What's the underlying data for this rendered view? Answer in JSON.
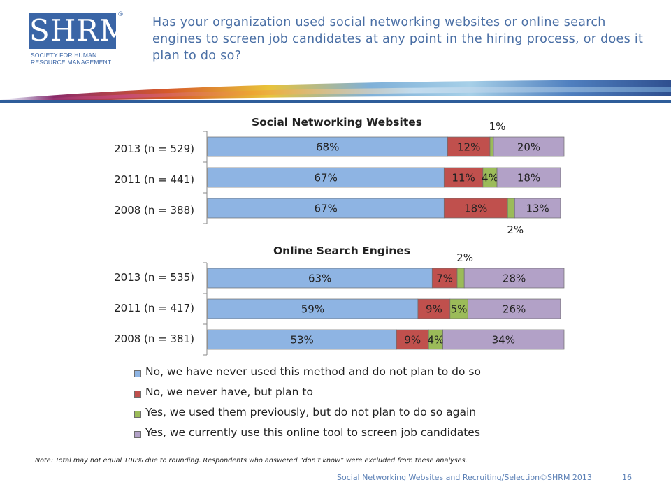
{
  "header": {
    "logo_text": "SHRM",
    "logo_registered": "®",
    "logo_tagline_1": "SOCIETY FOR HUMAN",
    "logo_tagline_2": "RESOURCE MANAGEMENT",
    "question": "Has your organization used social networking websites or online search engines to screen job candidates at any point in the hiring process, or does it plan to do so?"
  },
  "colors": {
    "no_never": "#8eb4e3",
    "no_plan": "#c0504d",
    "yes_previously": "#9bbb59",
    "yes_currently": "#b2a1c7",
    "question_text": "#4a6fa5",
    "logo": "#3a65a6"
  },
  "chart_data": [
    {
      "type": "bar",
      "orientation": "horizontal-stacked",
      "title": "Social Networking Websites",
      "categories": [
        "2013 (n = 529)",
        "2011 (n = 441)",
        "2008 (n = 388)"
      ],
      "series": [
        {
          "name": "No, we have never used this method and do not plan to do so",
          "values": [
            68,
            67,
            67
          ],
          "labels": [
            "68%",
            "67%",
            "67%"
          ]
        },
        {
          "name": "No, we never have, but plan to",
          "values": [
            12,
            11,
            18
          ],
          "labels": [
            "12%",
            "11%",
            "18%"
          ]
        },
        {
          "name": "Yes, we used them previously, but do not plan to do so again",
          "values": [
            1,
            4,
            2
          ],
          "labels": [
            "1%",
            "4%",
            "2%"
          ]
        },
        {
          "name": "Yes, we currently use this online tool to screen job candidates",
          "values": [
            20,
            18,
            13
          ],
          "labels": [
            "20%",
            "18%",
            "13%"
          ]
        }
      ],
      "xlim": [
        0,
        101
      ]
    },
    {
      "type": "bar",
      "orientation": "horizontal-stacked",
      "title": "Online Search Engines",
      "categories": [
        "2013 (n = 535)",
        "2011 (n = 417)",
        "2008 (n = 381)"
      ],
      "series": [
        {
          "name": "No, we have never used this method and do not plan to do so",
          "values": [
            63,
            59,
            53
          ],
          "labels": [
            "63%",
            "59%",
            "53%"
          ]
        },
        {
          "name": "No, we never have, but plan to",
          "values": [
            7,
            9,
            9
          ],
          "labels": [
            "7%",
            "9%",
            "9%"
          ]
        },
        {
          "name": "Yes, we used them previously, but do not plan to do so again",
          "values": [
            2,
            5,
            4
          ],
          "labels": [
            "2%",
            "5%",
            "4%"
          ]
        },
        {
          "name": "Yes, we currently use this online tool to screen job candidates",
          "values": [
            28,
            26,
            34
          ],
          "labels": [
            "28%",
            "26%",
            "34%"
          ]
        }
      ],
      "xlim": [
        0,
        100
      ]
    }
  ],
  "legend": [
    {
      "label": "No, we have never used this method and do not plan to do so"
    },
    {
      "label": "No, we never have, but plan to"
    },
    {
      "label": "Yes, we used them previously, but do not plan to do so again"
    },
    {
      "label": "Yes, we currently use this online tool to screen job candidates"
    }
  ],
  "note": "Note: Total may not equal 100% due to rounding. Respondents who answered “don’t know” were excluded from these analyses.",
  "footer": {
    "source": "Social Networking Websites and Recruiting/Selection©SHRM 2013",
    "page_number": "16"
  }
}
